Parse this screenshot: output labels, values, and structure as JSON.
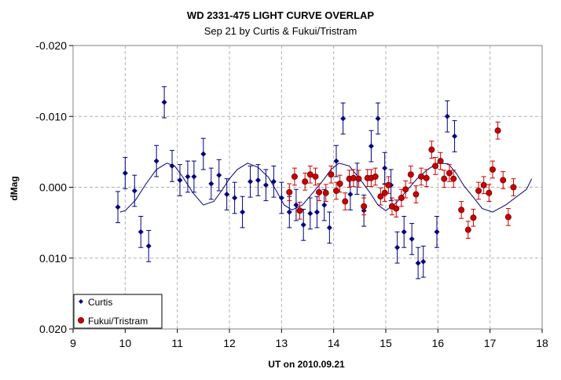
{
  "chart_data": {
    "type": "scatter",
    "title": "WD 2331-475 LIGHT CURVE OVERLAP",
    "subtitle": "Sep 21 by Curtis & Fukui/Tristram",
    "xlabel": "UT on 2010.09.21",
    "ylabel": "dMag",
    "xlim": [
      9,
      18
    ],
    "ylim": [
      -0.02,
      0.02
    ],
    "y_inverted": true,
    "xticks": [
      9,
      10,
      11,
      12,
      13,
      14,
      15,
      16,
      17,
      18
    ],
    "xtick_labels": [
      "9",
      "10",
      "11",
      "12",
      "13",
      "14",
      "15",
      "16",
      "17",
      "18"
    ],
    "yticks": [
      -0.02,
      -0.01,
      0.0,
      0.01,
      0.02
    ],
    "ytick_labels": [
      "-0.020",
      "-0.010",
      "0.000",
      "0.010",
      "0.020"
    ],
    "grid": "dashed",
    "legend_position": "bottom-left",
    "series": [
      {
        "name": "Curtis",
        "color": "#000080",
        "marker": "diamond",
        "x": [
          9.86,
          10.0,
          10.18,
          10.3,
          10.45,
          10.6,
          10.75,
          10.9,
          11.05,
          11.2,
          11.32,
          11.5,
          11.65,
          11.8,
          11.95,
          12.1,
          12.25,
          12.4,
          12.55,
          12.7,
          12.85,
          13.0,
          13.15,
          13.28,
          13.42,
          13.55,
          13.68,
          13.82,
          13.92,
          14.05,
          14.18,
          14.32,
          14.45,
          14.58,
          14.72,
          14.85,
          14.98,
          15.1,
          15.22,
          15.35,
          15.5,
          15.62,
          15.72,
          15.98,
          16.18,
          16.32
        ],
        "y": [
          0.0028,
          -0.002,
          0.0005,
          0.0063,
          0.0083,
          -0.0037,
          -0.012,
          -0.003,
          -0.001,
          -0.0015,
          -0.0015,
          -0.0047,
          -0.0005,
          -0.0017,
          0.001,
          0.0015,
          0.0035,
          -0.0008,
          -0.001,
          -0.0003,
          -0.0008,
          0.0015,
          0.0035,
          0.0025,
          0.0053,
          0.0037,
          0.0035,
          0.0025,
          0.0057,
          -0.0037,
          -0.0097,
          0.001,
          -0.0012,
          0.0033,
          -0.0058,
          -0.0097,
          -0.0027,
          -0.0003,
          0.0085,
          0.0063,
          0.0073,
          0.0107,
          0.0105,
          0.0063,
          -0.01,
          -0.0072
        ],
        "err": 0.0022
      },
      {
        "name": "Fukui/Tristram",
        "color": "#cc0000",
        "marker": "circle",
        "x": [
          13.15,
          13.25,
          13.35,
          13.45,
          13.55,
          13.65,
          13.72,
          13.85,
          13.95,
          14.05,
          14.12,
          14.22,
          14.3,
          14.38,
          14.48,
          14.58,
          14.65,
          14.72,
          14.8,
          14.9,
          14.98,
          15.05,
          15.12,
          15.2,
          15.3,
          15.38,
          15.48,
          15.58,
          15.68,
          15.78,
          15.88,
          15.95,
          16.05,
          16.12,
          16.22,
          16.3,
          16.45,
          16.58,
          16.68,
          16.78,
          16.88,
          16.98,
          17.05,
          17.15,
          17.25,
          17.35,
          17.45
        ],
        "y": [
          0.0007,
          -0.0015,
          0.0033,
          -0.0008,
          -0.0018,
          -0.0015,
          0.0007,
          0.0008,
          -0.0018,
          0.0005,
          -0.0005,
          0.002,
          -0.0012,
          -0.0013,
          -0.0012,
          0.0027,
          -0.0013,
          -0.0013,
          -0.0015,
          0.0013,
          0.0008,
          -0.0003,
          0.0027,
          0.003,
          0.0015,
          0.0003,
          -0.0018,
          0.001,
          -0.0015,
          -0.0013,
          -0.0053,
          -0.003,
          -0.0037,
          -0.0012,
          -0.002,
          -0.0012,
          0.0032,
          0.006,
          0.0043,
          0.0005,
          -0.0003,
          0.0008,
          -0.0025,
          -0.008,
          -0.001,
          0.0042,
          0.0
        ],
        "err": 0.0012
      },
      {
        "name": "",
        "type": "line",
        "color": "#000080",
        "x": [
          9.9,
          10.0,
          10.2,
          10.4,
          10.6,
          10.8,
          10.95,
          11.1,
          11.3,
          11.5,
          11.7,
          11.85,
          12.0,
          12.15,
          12.35,
          12.55,
          12.75,
          12.9,
          13.05,
          13.2,
          13.4,
          13.6,
          13.8,
          13.95,
          14.1,
          14.3,
          14.5,
          14.7,
          14.85,
          15.0,
          15.2,
          15.4,
          15.6,
          15.8,
          16.0,
          16.2,
          16.35,
          16.5,
          16.7,
          16.85,
          17.05,
          17.3,
          17.5,
          17.7,
          17.8
        ],
        "y": [
          0.0035,
          0.0033,
          0.0018,
          -0.0005,
          -0.0025,
          -0.0034,
          -0.003,
          -0.0015,
          0.0008,
          0.0025,
          0.002,
          0.0005,
          -0.0012,
          -0.0025,
          -0.0034,
          -0.0028,
          -0.0014,
          0.0005,
          0.0025,
          0.0032,
          0.0025,
          0.0008,
          -0.001,
          -0.0025,
          -0.0034,
          -0.003,
          -0.0012,
          0.0008,
          0.0025,
          0.0033,
          0.0022,
          0.0005,
          -0.0012,
          -0.0025,
          -0.0034,
          -0.0033,
          -0.002,
          -0.0002,
          0.0016,
          0.003,
          0.0035,
          0.0025,
          0.0014,
          0.0003,
          -0.0012
        ]
      }
    ]
  }
}
